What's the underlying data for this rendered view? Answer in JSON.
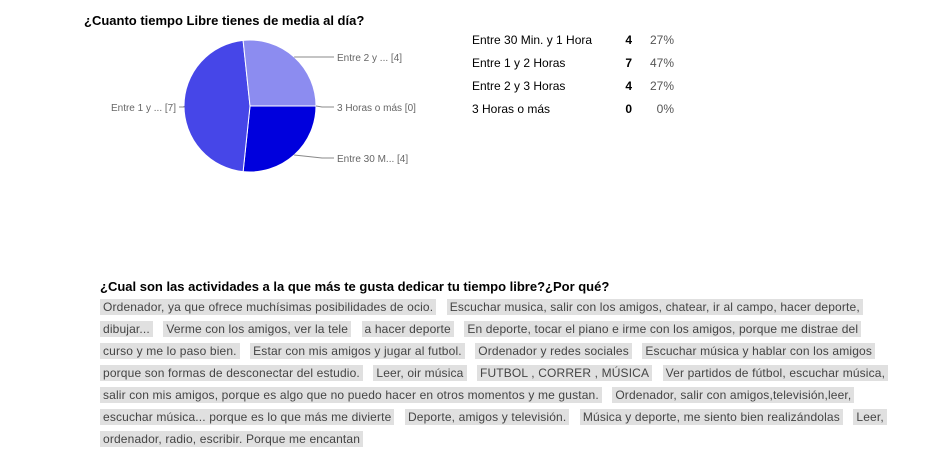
{
  "chart_data": {
    "type": "pie",
    "title": "¿Cuanto tiempo Libre tienes de media al día?",
    "slices": [
      {
        "label": "Entre 30 Min. y 1 Hora",
        "short_label": "Entre 30 M... [4]",
        "value": 4,
        "percent": "27%",
        "color": "#0000dd"
      },
      {
        "label": "Entre 1 y 2 Horas",
        "short_label": "Entre 1 y ... [7]",
        "value": 7,
        "percent": "47%",
        "color": "#4646e8"
      },
      {
        "label": "Entre 2 y 3 Horas",
        "short_label": "Entre 2 y ... [4]",
        "value": 4,
        "percent": "27%",
        "color": "#8c8cf0"
      },
      {
        "label": "3 Horas o más",
        "short_label": "3 Horas o más [0]",
        "value": 0,
        "percent": "0%",
        "color": "#c8c8f8"
      }
    ]
  },
  "question2": {
    "title": "¿Cual son las actividades a la que más te gusta dedicar tu tiempo libre?¿Por qué?",
    "answers": [
      "Ordenador, ya que ofrece muchísimas posibilidades de ocio.",
      "Escuchar musica, salir con los amigos, chatear, ir al campo, hacer deporte, dibujar...",
      "Verme con los amigos, ver la tele",
      "a hacer deporte",
      "En deporte, tocar el piano e irme con los amigos, porque me distrae del curso y me lo paso bien.",
      "Estar con mis amigos y jugar al futbol.",
      "Ordenador y redes sociales",
      "Escuchar música y hablar con los amigos porque son formas de desconectar del estudio.",
      "Leer, oir música",
      "FUTBOL , CORRER , MÚSICA",
      "Ver partidos de fútbol, escuchar música, salir con mis amigos, porque es algo que no puedo hacer en otros momentos y me gustan.",
      "Ordenador, salir con amigos,televisión,leer, escuchar música... porque es lo que más me divierte",
      "Deporte, amigos y televisión.",
      "Música y deporte, me siento bien realizándolas",
      "Leer, ordenador, radio, escribir. Porque me encantan"
    ]
  }
}
